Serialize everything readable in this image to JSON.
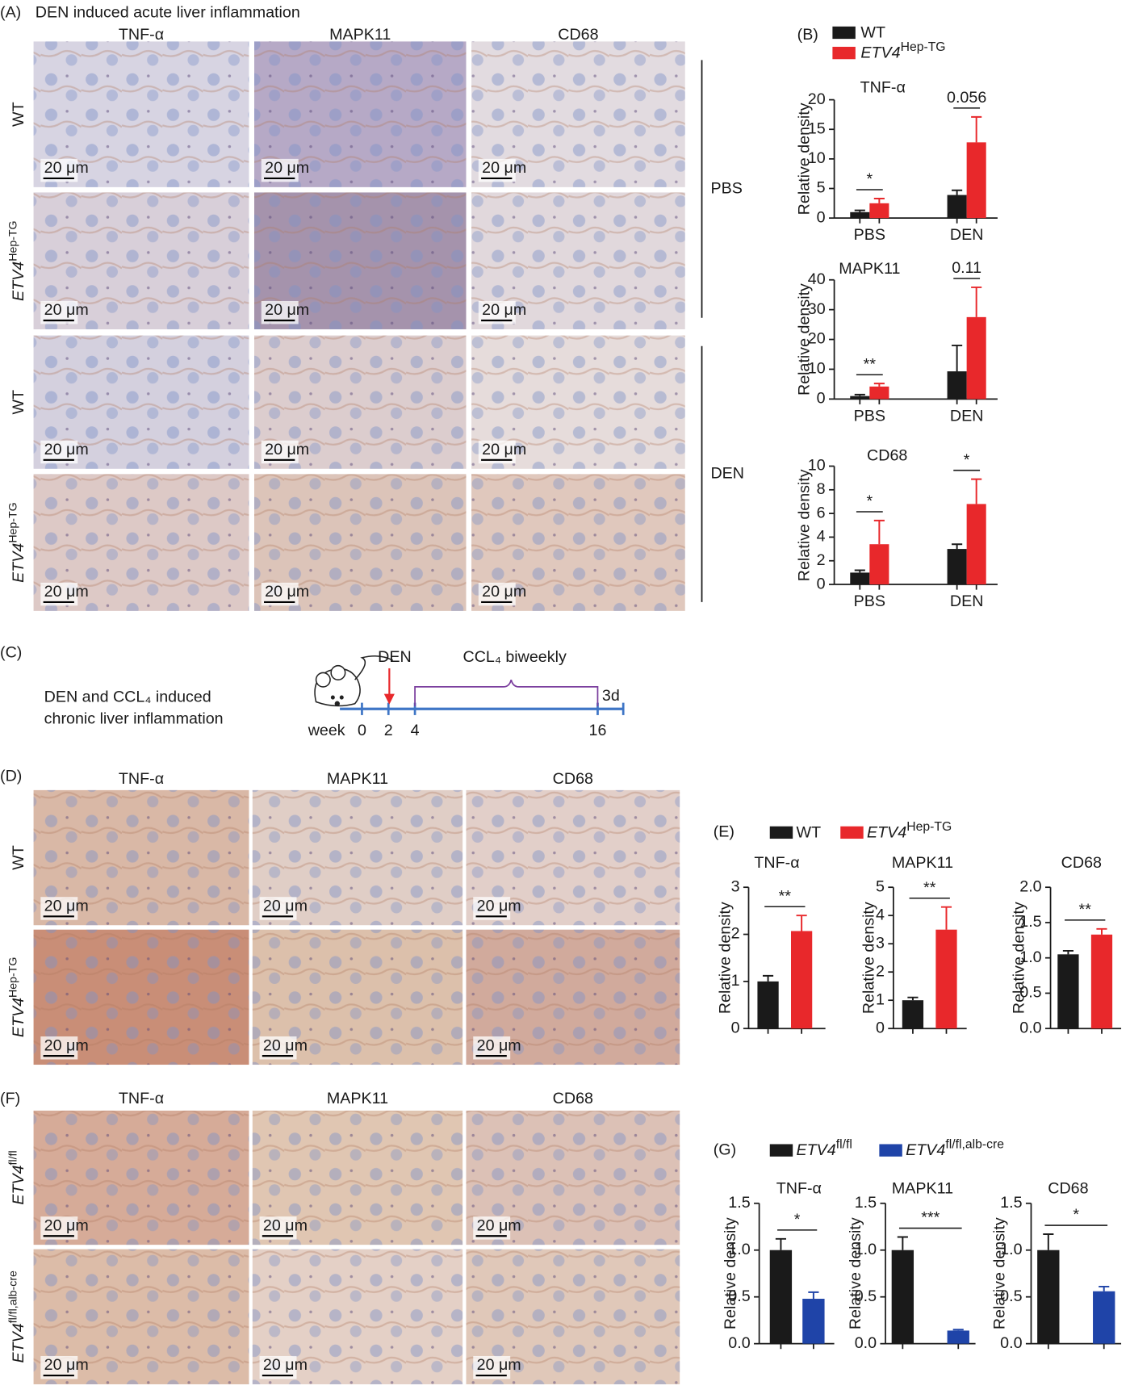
{
  "panel_a": {
    "label": "(A)",
    "title": "DEN induced acute liver inflammation",
    "columns": [
      "TNF-α",
      "MAPK11",
      "CD68"
    ],
    "rows": [
      {
        "text": "WT"
      },
      {
        "text": "ETV4",
        "sup": "Hep-TG"
      },
      {
        "text": "WT"
      },
      {
        "text": "ETV4",
        "sup": "Hep-TG"
      }
    ],
    "groups": [
      "PBS",
      "DEN"
    ]
  },
  "scale_bar": "20 μm",
  "panel_b": {
    "label": "(B)",
    "legend": [
      {
        "text": "WT",
        "color": "#1a1a1a"
      },
      {
        "text": "ETV4",
        "sup": "Hep-TG",
        "color": "#e8282b"
      }
    ]
  },
  "panel_c": {
    "label": "(C)",
    "caption": [
      "DEN and CCL₄ induced",
      "chronic liver inflammation"
    ],
    "axis_label": "week",
    "ticks": [
      "0",
      "2",
      "4",
      "16"
    ],
    "injection": "DEN",
    "treatment": "CCL₄ biweekly",
    "end": "3d"
  },
  "panel_d": {
    "label": "(D)",
    "columns": [
      "TNF-α",
      "MAPK11",
      "CD68"
    ],
    "rows": [
      {
        "text": "WT"
      },
      {
        "text": "ETV4",
        "sup": "Hep-TG"
      }
    ]
  },
  "panel_e": {
    "label": "(E)",
    "legend": [
      {
        "text": "WT",
        "color": "#1a1a1a"
      },
      {
        "text": "ETV4",
        "sup": "Hep-TG",
        "color": "#e8282b"
      }
    ]
  },
  "panel_f": {
    "label": "(F)",
    "columns": [
      "TNF-α",
      "MAPK11",
      "CD68"
    ],
    "rows": [
      {
        "text": "ETV4",
        "sup": "fl/fl"
      },
      {
        "text": "ETV4",
        "sup": "fl/fl,alb-cre"
      }
    ]
  },
  "panel_g": {
    "label": "(G)",
    "legend": [
      {
        "text": "ETV4",
        "sup": "fl/fl",
        "color": "#1a1a1a"
      },
      {
        "text": "ETV4",
        "sup": "fl/fl,alb-cre",
        "color": "#1f44a8"
      }
    ]
  },
  "chart_data": [
    {
      "type": "bar",
      "title": "TNF-α",
      "y_label": "Relative density",
      "categories": [
        "PBS",
        "DEN"
      ],
      "series": [
        {
          "color": "#1a1a1a",
          "values": [
            1.0,
            3.9
          ],
          "errors": [
            0.3,
            0.8
          ]
        },
        {
          "color": "#e8282b",
          "values": [
            2.5,
            12.8
          ],
          "errors": [
            0.8,
            4.3
          ]
        }
      ],
      "ylim": [
        0,
        20
      ],
      "yticks": [
        0,
        5,
        10,
        15,
        20
      ],
      "annotations": [
        "*",
        "0.056"
      ]
    },
    {
      "type": "bar",
      "title": "MAPK11",
      "y_label": "Relative density",
      "categories": [
        "PBS",
        "DEN"
      ],
      "series": [
        {
          "color": "#1a1a1a",
          "values": [
            1.0,
            9.3
          ],
          "errors": [
            0.5,
            8.7
          ]
        },
        {
          "color": "#e8282b",
          "values": [
            4.2,
            27.5
          ],
          "errors": [
            1.0,
            10.0
          ]
        }
      ],
      "ylim": [
        0,
        40
      ],
      "yticks": [
        0,
        10,
        20,
        30,
        40
      ],
      "annotations": [
        "**",
        "0.11"
      ]
    },
    {
      "type": "bar",
      "title": "CD68",
      "y_label": "Relative density",
      "categories": [
        "PBS",
        "DEN"
      ],
      "series": [
        {
          "color": "#1a1a1a",
          "values": [
            1.0,
            3.0
          ],
          "errors": [
            0.2,
            0.4
          ]
        },
        {
          "color": "#e8282b",
          "values": [
            3.4,
            6.8
          ],
          "errors": [
            2.0,
            2.1
          ]
        }
      ],
      "ylim": [
        0,
        10
      ],
      "yticks": [
        0,
        2,
        4,
        6,
        8,
        10
      ],
      "annotations": [
        "*",
        "*"
      ]
    },
    {
      "type": "bar",
      "title": "TNF-α",
      "y_label": "Relative density",
      "series": [
        {
          "color": "#1a1a1a",
          "values": [
            1.0
          ],
          "errors": [
            0.12
          ]
        },
        {
          "color": "#e8282b",
          "values": [
            2.07
          ],
          "errors": [
            0.33
          ]
        }
      ],
      "ylim": [
        0,
        3
      ],
      "yticks": [
        0,
        1,
        2,
        3
      ],
      "annotations": [
        "**"
      ]
    },
    {
      "type": "bar",
      "title": "MAPK11",
      "y_label": "Relative density",
      "series": [
        {
          "color": "#1a1a1a",
          "values": [
            1.0
          ],
          "errors": [
            0.1
          ]
        },
        {
          "color": "#e8282b",
          "values": [
            3.5
          ],
          "errors": [
            0.8
          ]
        }
      ],
      "ylim": [
        0,
        5
      ],
      "yticks": [
        0,
        1,
        2,
        3,
        4,
        5
      ],
      "annotations": [
        "**"
      ]
    },
    {
      "type": "bar",
      "title": "CD68",
      "y_label": "Relative density",
      "series": [
        {
          "color": "#1a1a1a",
          "values": [
            1.05
          ],
          "errors": [
            0.05
          ]
        },
        {
          "color": "#e8282b",
          "values": [
            1.33
          ],
          "errors": [
            0.08
          ]
        }
      ],
      "ylim": [
        0,
        2
      ],
      "yticks": [
        {
          "value": 0,
          "label": "0.0"
        },
        {
          "value": 0.5,
          "label": "0.5"
        },
        {
          "value": 1,
          "label": "1.0"
        },
        {
          "value": 1.5,
          "label": "1.5"
        },
        {
          "value": 2,
          "label": "2.0"
        }
      ],
      "annotations": [
        "**"
      ]
    },
    {
      "type": "bar",
      "title": "TNF-α",
      "y_label": "Relative density",
      "series": [
        {
          "color": "#1a1a1a",
          "values": [
            1.0
          ],
          "errors": [
            0.12
          ]
        },
        {
          "color": "#1f44a8",
          "values": [
            0.48
          ],
          "errors": [
            0.07
          ]
        }
      ],
      "ylim": [
        0,
        1.5
      ],
      "yticks": [
        {
          "value": 0,
          "label": "0.0"
        },
        {
          "value": 0.5,
          "label": "0.5"
        },
        {
          "value": 1,
          "label": "1.0"
        },
        1.5
      ],
      "annotations": [
        "*"
      ]
    },
    {
      "type": "bar",
      "title": "MAPK11",
      "y_label": "Relative density",
      "series": [
        {
          "color": "#1a1a1a",
          "values": [
            1.0
          ],
          "errors": [
            0.14
          ]
        },
        {
          "color": "#1f44a8",
          "values": [
            0.14
          ],
          "errors": [
            0.01
          ]
        }
      ],
      "ylim": [
        0,
        1.5
      ],
      "yticks": [
        {
          "value": 0,
          "label": "0.0"
        },
        {
          "value": 0.5,
          "label": "0.5"
        },
        {
          "value": 1,
          "label": "1.0"
        },
        1.5
      ],
      "annotations": [
        "***"
      ]
    },
    {
      "type": "bar",
      "title": "CD68",
      "y_label": "Relative density",
      "series": [
        {
          "color": "#1a1a1a",
          "values": [
            1.0
          ],
          "errors": [
            0.17
          ]
        },
        {
          "color": "#1f44a8",
          "values": [
            0.56
          ],
          "errors": [
            0.05
          ]
        }
      ],
      "ylim": [
        0,
        1.5
      ],
      "yticks": [
        {
          "value": 0,
          "label": "0.0"
        },
        {
          "value": 0.5,
          "label": "0.5"
        },
        {
          "value": 1,
          "label": "1.0"
        },
        1.5
      ],
      "annotations": [
        "*"
      ]
    }
  ]
}
